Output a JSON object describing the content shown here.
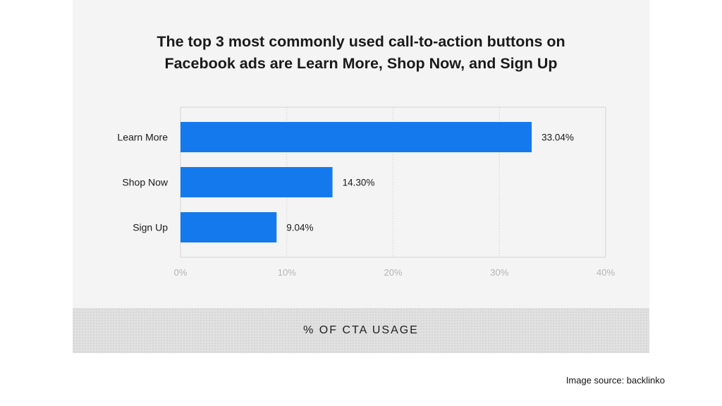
{
  "title_lines": [
    "The top 3 most commonly used call-to-action buttons on",
    "Facebook ads are Learn More, Shop Now, and Sign Up"
  ],
  "source": "Image source: backlinko",
  "colors": {
    "bar": "#1579ee",
    "card": "#f4f4f4",
    "grid": "#d4d4d4",
    "tick": "#b5b5b5"
  },
  "chart_data": {
    "type": "bar",
    "orientation": "horizontal",
    "title": "The top 3 most commonly used call-to-action buttons on Facebook ads are Learn More, Shop Now, and Sign Up",
    "categories": [
      "Learn More",
      "Shop Now",
      "Sign Up"
    ],
    "values": [
      33.04,
      14.3,
      9.04
    ],
    "value_labels": [
      "33.04%",
      "14.30%",
      "9.04%"
    ],
    "xlabel": "% OF CTA USAGE",
    "ylabel": "",
    "xlim": [
      0,
      40
    ],
    "xticks": [
      0,
      10,
      20,
      30,
      40
    ],
    "xtick_labels": [
      "0%",
      "10%",
      "20%",
      "30%",
      "40%"
    ],
    "grid": true
  }
}
